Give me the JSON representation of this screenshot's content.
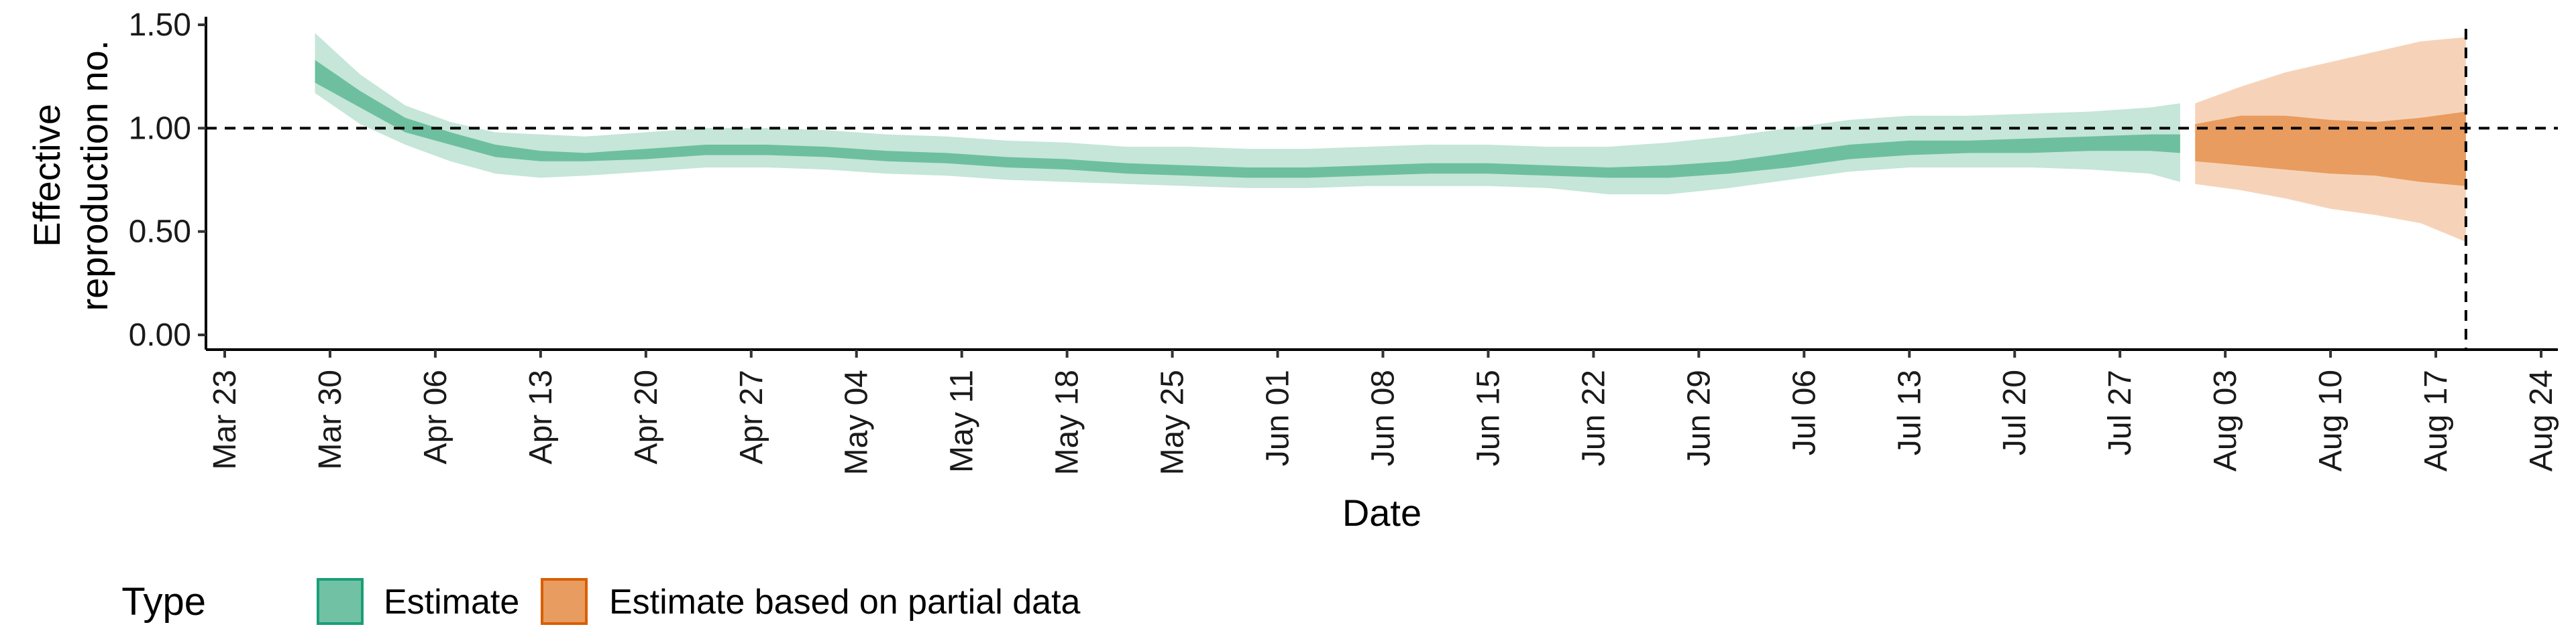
{
  "chart_data": {
    "type": "area",
    "title": "",
    "xlabel": "Date",
    "ylabel_lines": [
      "Effective",
      "reproduction no."
    ],
    "x_ticks": [
      "Mar 23",
      "Mar 30",
      "Apr 06",
      "Apr 13",
      "Apr 20",
      "Apr 27",
      "May 04",
      "May 11",
      "May 18",
      "May 25",
      "Jun 01",
      "Jun 08",
      "Jun 15",
      "Jun 22",
      "Jun 29",
      "Jul 06",
      "Jul 13",
      "Jul 20",
      "Jul 27",
      "Aug 03",
      "Aug 10",
      "Aug 17",
      "Aug 24"
    ],
    "x_start": "2020-03-23",
    "x_end": "2020-08-24",
    "y_ticks": [
      "0.00",
      "0.50",
      "1.00",
      "1.50"
    ],
    "ylim": [
      0,
      1.55
    ],
    "reference_hline": 1.0,
    "reference_vline_date": "2020-08-19",
    "grid": false,
    "legend_position": "bottom-left",
    "legend": {
      "title": "Type",
      "items": [
        {
          "label": "Estimate",
          "fill": "#71c2a5",
          "border": "#1b9e77"
        },
        {
          "label": "Estimate based on partial data",
          "fill": "#e89c5f",
          "border": "#d95f02"
        }
      ]
    },
    "series": [
      {
        "name": "Estimate",
        "inner_color": "#6ebf9f",
        "outer_color": "#c5e6d9",
        "points": [
          {
            "date": "2020-03-29",
            "lo90": 1.17,
            "lo50": 1.22,
            "hi50": 1.33,
            "hi90": 1.46
          },
          {
            "date": "2020-04-01",
            "lo90": 1.02,
            "lo50": 1.1,
            "hi50": 1.18,
            "hi90": 1.26
          },
          {
            "date": "2020-04-04",
            "lo90": 0.92,
            "lo50": 0.98,
            "hi50": 1.05,
            "hi90": 1.11
          },
          {
            "date": "2020-04-07",
            "lo90": 0.84,
            "lo50": 0.92,
            "hi50": 0.98,
            "hi90": 1.03
          },
          {
            "date": "2020-04-10",
            "lo90": 0.78,
            "lo50": 0.86,
            "hi50": 0.92,
            "hi90": 0.98
          },
          {
            "date": "2020-04-13",
            "lo90": 0.76,
            "lo50": 0.84,
            "hi50": 0.89,
            "hi90": 0.97
          },
          {
            "date": "2020-04-16",
            "lo90": 0.77,
            "lo50": 0.84,
            "hi50": 0.88,
            "hi90": 0.96
          },
          {
            "date": "2020-04-20",
            "lo90": 0.79,
            "lo50": 0.85,
            "hi50": 0.9,
            "hi90": 0.98
          },
          {
            "date": "2020-04-24",
            "lo90": 0.81,
            "lo50": 0.87,
            "hi50": 0.92,
            "hi90": 1.0
          },
          {
            "date": "2020-04-28",
            "lo90": 0.81,
            "lo50": 0.87,
            "hi50": 0.92,
            "hi90": 1.0
          },
          {
            "date": "2020-05-02",
            "lo90": 0.8,
            "lo50": 0.86,
            "hi50": 0.91,
            "hi90": 0.99
          },
          {
            "date": "2020-05-06",
            "lo90": 0.78,
            "lo50": 0.84,
            "hi50": 0.89,
            "hi90": 0.97
          },
          {
            "date": "2020-05-10",
            "lo90": 0.77,
            "lo50": 0.83,
            "hi50": 0.88,
            "hi90": 0.96
          },
          {
            "date": "2020-05-14",
            "lo90": 0.75,
            "lo50": 0.81,
            "hi50": 0.86,
            "hi90": 0.94
          },
          {
            "date": "2020-05-18",
            "lo90": 0.74,
            "lo50": 0.8,
            "hi50": 0.85,
            "hi90": 0.93
          },
          {
            "date": "2020-05-22",
            "lo90": 0.73,
            "lo50": 0.78,
            "hi50": 0.83,
            "hi90": 0.91
          },
          {
            "date": "2020-05-26",
            "lo90": 0.72,
            "lo50": 0.77,
            "hi50": 0.82,
            "hi90": 0.91
          },
          {
            "date": "2020-05-30",
            "lo90": 0.71,
            "lo50": 0.76,
            "hi50": 0.81,
            "hi90": 0.9
          },
          {
            "date": "2020-06-03",
            "lo90": 0.71,
            "lo50": 0.76,
            "hi50": 0.81,
            "hi90": 0.9
          },
          {
            "date": "2020-06-07",
            "lo90": 0.72,
            "lo50": 0.77,
            "hi50": 0.82,
            "hi90": 0.91
          },
          {
            "date": "2020-06-11",
            "lo90": 0.72,
            "lo50": 0.78,
            "hi50": 0.83,
            "hi90": 0.92
          },
          {
            "date": "2020-06-15",
            "lo90": 0.72,
            "lo50": 0.78,
            "hi50": 0.83,
            "hi90": 0.92
          },
          {
            "date": "2020-06-19",
            "lo90": 0.71,
            "lo50": 0.77,
            "hi50": 0.82,
            "hi90": 0.91
          },
          {
            "date": "2020-06-23",
            "lo90": 0.68,
            "lo50": 0.76,
            "hi50": 0.81,
            "hi90": 0.91
          },
          {
            "date": "2020-06-27",
            "lo90": 0.68,
            "lo50": 0.76,
            "hi50": 0.82,
            "hi90": 0.93
          },
          {
            "date": "2020-07-01",
            "lo90": 0.71,
            "lo50": 0.78,
            "hi50": 0.84,
            "hi90": 0.96
          },
          {
            "date": "2020-07-05",
            "lo90": 0.75,
            "lo50": 0.81,
            "hi50": 0.88,
            "hi90": 1.0
          },
          {
            "date": "2020-07-09",
            "lo90": 0.79,
            "lo50": 0.85,
            "hi50": 0.92,
            "hi90": 1.04
          },
          {
            "date": "2020-07-13",
            "lo90": 0.81,
            "lo50": 0.87,
            "hi50": 0.94,
            "hi90": 1.06
          },
          {
            "date": "2020-07-17",
            "lo90": 0.81,
            "lo50": 0.88,
            "hi50": 0.94,
            "hi90": 1.06
          },
          {
            "date": "2020-07-21",
            "lo90": 0.81,
            "lo50": 0.88,
            "hi50": 0.95,
            "hi90": 1.07
          },
          {
            "date": "2020-07-25",
            "lo90": 0.8,
            "lo50": 0.89,
            "hi50": 0.96,
            "hi90": 1.08
          },
          {
            "date": "2020-07-29",
            "lo90": 0.78,
            "lo50": 0.89,
            "hi50": 0.97,
            "hi90": 1.1
          },
          {
            "date": "2020-07-31",
            "lo90": 0.74,
            "lo50": 0.88,
            "hi50": 0.97,
            "hi90": 1.12
          }
        ]
      },
      {
        "name": "Estimate based on partial data",
        "inner_color": "#e89c5f",
        "outer_color": "#f6d3b8",
        "points": [
          {
            "date": "2020-08-01",
            "lo90": 0.73,
            "lo50": 0.84,
            "hi50": 1.02,
            "hi90": 1.12
          },
          {
            "date": "2020-08-04",
            "lo90": 0.7,
            "lo50": 0.82,
            "hi50": 1.06,
            "hi90": 1.2
          },
          {
            "date": "2020-08-07",
            "lo90": 0.66,
            "lo50": 0.8,
            "hi50": 1.06,
            "hi90": 1.27
          },
          {
            "date": "2020-08-10",
            "lo90": 0.61,
            "lo50": 0.78,
            "hi50": 1.04,
            "hi90": 1.32
          },
          {
            "date": "2020-08-13",
            "lo90": 0.58,
            "lo50": 0.77,
            "hi50": 1.03,
            "hi90": 1.37
          },
          {
            "date": "2020-08-16",
            "lo90": 0.54,
            "lo50": 0.74,
            "hi50": 1.05,
            "hi90": 1.42
          },
          {
            "date": "2020-08-19",
            "lo90": 0.45,
            "lo50": 0.72,
            "hi50": 1.08,
            "hi90": 1.44
          }
        ]
      }
    ]
  }
}
